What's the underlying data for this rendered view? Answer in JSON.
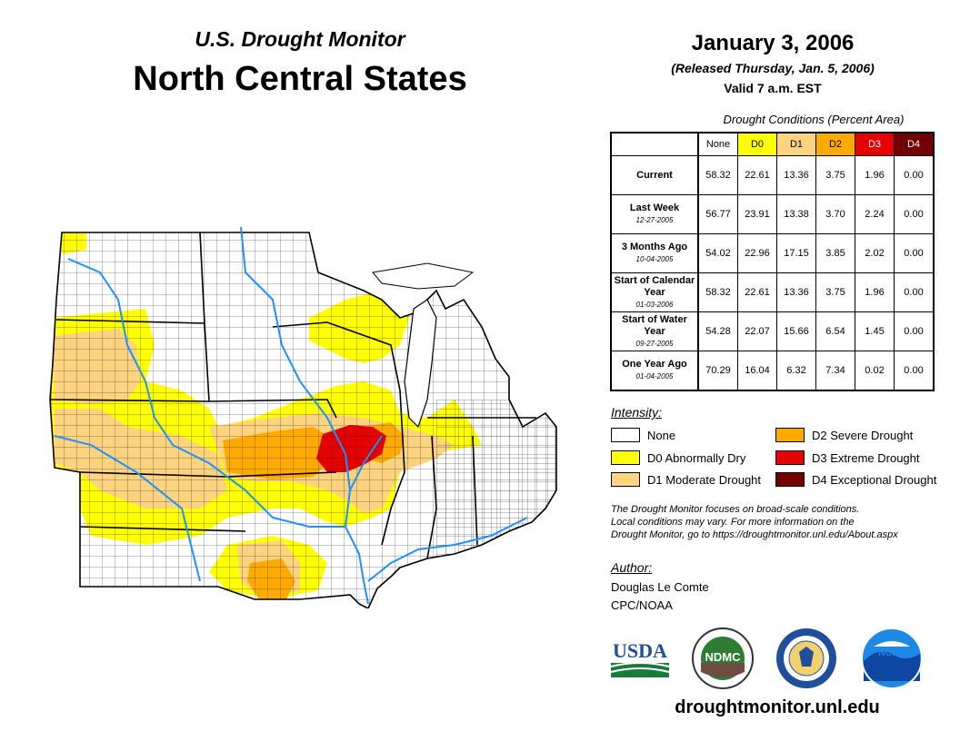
{
  "header": {
    "subtitle": "U.S. Drought Monitor",
    "title": "North Central States",
    "date": "January 3, 2006",
    "released": "(Released Thursday, Jan. 5, 2006)",
    "valid": "Valid 7 a.m. EST"
  },
  "table": {
    "caption": "Drought Conditions (Percent Area)",
    "columns": [
      "None",
      "D0",
      "D1",
      "D2",
      "D3",
      "D4"
    ],
    "rows": [
      {
        "label": "Current",
        "date": "",
        "values": [
          "58.32",
          "22.61",
          "13.36",
          "3.75",
          "1.96",
          "0.00"
        ]
      },
      {
        "label": "Last Week",
        "date": "12-27-2005",
        "values": [
          "56.77",
          "23.91",
          "13.38",
          "3.70",
          "2.24",
          "0.00"
        ]
      },
      {
        "label": "3 Months Ago",
        "date": "10-04-2005",
        "values": [
          "54.02",
          "22.96",
          "17.15",
          "3.85",
          "2.02",
          "0.00"
        ]
      },
      {
        "label": "Start of Calendar Year",
        "date": "01-03-2006",
        "values": [
          "58.32",
          "22.61",
          "13.36",
          "3.75",
          "1.96",
          "0.00"
        ]
      },
      {
        "label": "Start of Water Year",
        "date": "09-27-2005",
        "values": [
          "54.28",
          "22.07",
          "15.66",
          "6.54",
          "1.45",
          "0.00"
        ]
      },
      {
        "label": "One Year Ago",
        "date": "01-04-2005",
        "values": [
          "70.29",
          "16.04",
          "6.32",
          "7.34",
          "0.02",
          "0.00"
        ]
      }
    ]
  },
  "legend": {
    "heading": "Intensity:",
    "items": [
      {
        "label": "None",
        "color": "#ffffff"
      },
      {
        "label": "D0 Abnormally Dry",
        "color": "#ffff00"
      },
      {
        "label": "D1 Moderate Drought",
        "color": "#fcd37f"
      },
      {
        "label": "D2 Severe Drought",
        "color": "#ffaa00"
      },
      {
        "label": "D3 Extreme Drought",
        "color": "#e60000"
      },
      {
        "label": "D4 Exceptional Drought",
        "color": "#730000"
      }
    ]
  },
  "note": {
    "line1": "The Drought Monitor focuses on broad-scale conditions.",
    "line2": "Local conditions may vary. For more information on the",
    "line3": "Drought Monitor, go to https://droughtmonitor.unl.edu/About.aspx"
  },
  "author": {
    "heading": "Author:",
    "name": "Douglas Le Comte",
    "org": "CPC/NOAA"
  },
  "logos": {
    "usda": "USDA",
    "ndmc": "NDMC",
    "noaa": "NOAA"
  },
  "footer": {
    "site": "droughtmonitor.unl.edu"
  }
}
